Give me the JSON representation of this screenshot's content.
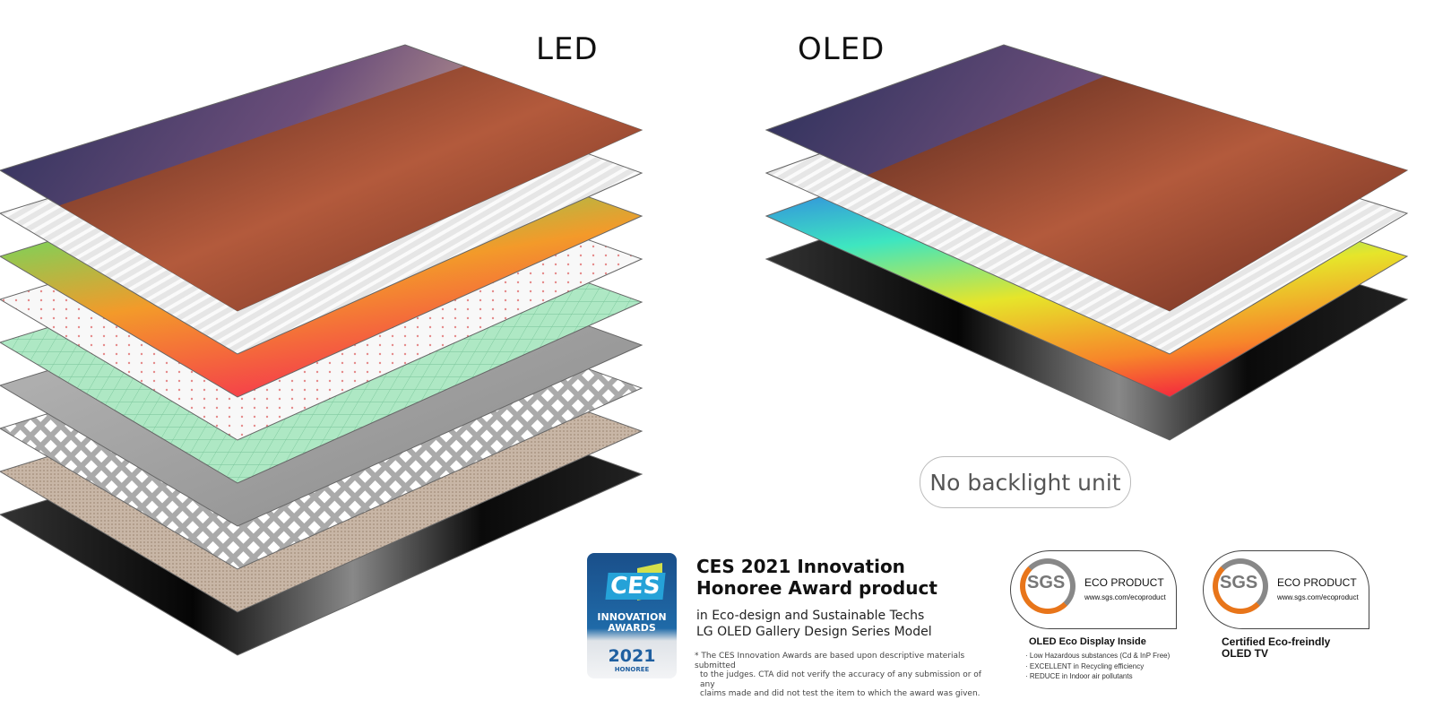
{
  "led": {
    "title": "LED"
  },
  "oled": {
    "title": "OLED",
    "badge": "No backlight unit"
  },
  "ces": {
    "logo": "CES",
    "badge_line1": "INNOVATION",
    "badge_line2": "AWARDS",
    "badge_year": "2021",
    "badge_honoree": "HONOREE",
    "headline1": "CES 2021 Innovation",
    "headline2": "Honoree Award product",
    "sub1": "in Eco-design and Sustainable Techs",
    "sub2": "LG OLED Gallery Design Series Model",
    "note1": "* The CES Innovation Awards are based upon descriptive materials submitted",
    "note2": "to the judges. CTA did not verify the accuracy of any submission or of any",
    "note3": "claims made and did not test the item to which the award was given."
  },
  "sgs": [
    {
      "logo": "SGS",
      "label": "ECO PRODUCT",
      "url": "www.sgs.com/ecoproduct",
      "caption": "OLED Eco Display Inside",
      "bullets": [
        "· Low Hazardous substances (Cd & InP Free)",
        "· EXCELLENT in Recycling efficiency",
        "· REDUCE in Indoor air pollutants"
      ]
    },
    {
      "logo": "SGS",
      "label": "ECO PRODUCT",
      "url": "www.sgs.com/ecoproduct",
      "caption1": "Certified Eco-freindly",
      "caption2": "OLED TV"
    }
  ],
  "colors": {
    "orange": "#e8751a",
    "ces_blue": "#1f6aa8"
  }
}
